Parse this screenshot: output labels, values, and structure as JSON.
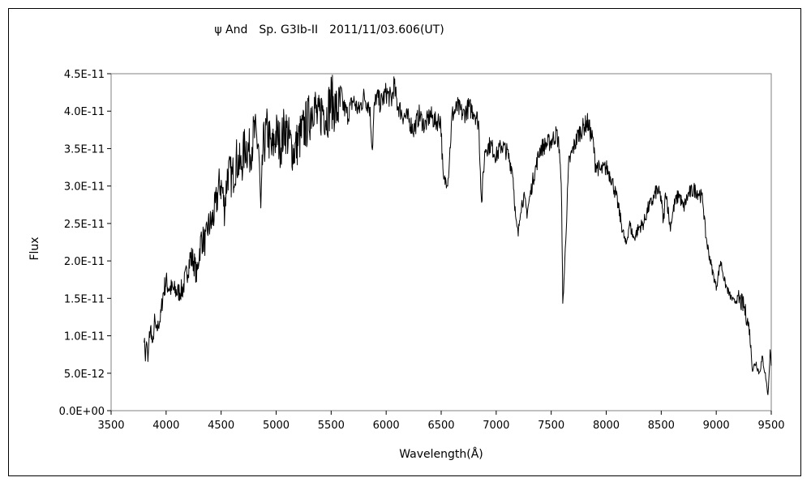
{
  "chart_data": {
    "type": "line",
    "title": "ψ And　Sp. G3Ib-II　2011/11/03.606(UT)",
    "xlabel": "Wavelength(Å)",
    "ylabel": "Flux",
    "xlim": [
      3500,
      9500
    ],
    "ylim": [
      0,
      4.5e-11
    ],
    "xticks": [
      "3500",
      "4000",
      "4500",
      "5000",
      "5500",
      "6000",
      "6500",
      "7000",
      "7500",
      "8000",
      "8500",
      "9000",
      "9500"
    ],
    "yticks": [
      "0.0E+00",
      "5.0E-12",
      "1.0E-11",
      "1.5E-11",
      "2.0E-11",
      "2.5E-11",
      "3.0E-11",
      "3.5E-11",
      "4.0E-11",
      "4.5E-11"
    ],
    "grid": false,
    "legend": "none",
    "line_color": "#000000",
    "series": [
      {
        "x": [
          3800,
          3812,
          3822,
          3835,
          3848,
          3862,
          3878,
          3895,
          3912,
          3930,
          3950,
          3972,
          3990,
          4000,
          4020,
          4050,
          4080,
          4110,
          4150,
          4190,
          4220,
          4250,
          4280,
          4300,
          4320,
          4360,
          4380,
          4410,
          4440,
          4470,
          4490,
          4510,
          4530,
          4560,
          4600,
          4640,
          4680,
          4720,
          4760,
          4800,
          4840,
          4861,
          4880,
          4920,
          4960,
          5000,
          5040,
          5080,
          5120,
          5160,
          5200,
          5250,
          5300,
          5340,
          5380,
          5420,
          5460,
          5500,
          5550,
          5600,
          5650,
          5700,
          5750,
          5800,
          5850,
          5875,
          5890,
          5910,
          5950,
          6000,
          6050,
          6070,
          6100,
          6150,
          6200,
          6250,
          6300,
          6350,
          6400,
          6450,
          6495,
          6520,
          6563,
          6600,
          6650,
          6700,
          6750,
          6800,
          6840,
          6868,
          6880,
          6900,
          6950,
          7000,
          7050,
          7100,
          7150,
          7180,
          7200,
          7220,
          7250,
          7280,
          7300,
          7330,
          7360,
          7400,
          7450,
          7500,
          7550,
          7575,
          7595,
          7605,
          7620,
          7640,
          7660,
          7700,
          7750,
          7800,
          7830,
          7860,
          7880,
          7900,
          7950,
          8000,
          8050,
          8100,
          8150,
          8180,
          8210,
          8250,
          8300,
          8340,
          8380,
          8420,
          8460,
          8498,
          8520,
          8542,
          8580,
          8620,
          8662,
          8700,
          8750,
          8800,
          8850,
          8880,
          8900,
          8920,
          8960,
          9000,
          9040,
          9080,
          9120,
          9160,
          9200,
          9250,
          9300,
          9330,
          9360,
          9390,
          9420,
          9450,
          9470,
          9490,
          9500
        ],
        "y": [
          1e-11,
          7e-12,
          9.5e-12,
          6.5e-12,
          1e-11,
          1.1e-11,
          8.5e-12,
          1.2e-11,
          1.05e-11,
          1.15e-11,
          1.25e-11,
          1.55e-11,
          1.68e-11,
          1.72e-11,
          1.66e-11,
          1.62e-11,
          1.6e-11,
          1.58e-11,
          1.62e-11,
          1.85e-11,
          2.05e-11,
          2e-11,
          1.8e-11,
          2.1e-11,
          2.3e-11,
          2.25e-11,
          2.45e-11,
          2.5e-11,
          2.65e-11,
          2.9e-11,
          3.05e-11,
          2.95e-11,
          2.7e-11,
          3.2e-11,
          3.1e-11,
          3.35e-11,
          3.25e-11,
          3.55e-11,
          3.45e-11,
          3.7e-11,
          3.55e-11,
          2.6e-11,
          3.5e-11,
          3.75e-11,
          3.45e-11,
          3.7e-11,
          3.55e-11,
          3.8e-11,
          3.6e-11,
          3.45e-11,
          3.6e-11,
          3.75e-11,
          3.9e-11,
          4.15e-11,
          3.85e-11,
          4.05e-11,
          3.95e-11,
          4.15e-11,
          4e-11,
          4.1e-11,
          3.95e-11,
          4.15e-11,
          4e-11,
          4.2e-11,
          4.05e-11,
          3.5e-11,
          4e-11,
          4.2e-11,
          4.1e-11,
          4.25e-11,
          4.15e-11,
          4.35e-11,
          4.1e-11,
          3.95e-11,
          3.9e-11,
          3.75e-11,
          3.95e-11,
          3.8e-11,
          3.95e-11,
          3.85e-11,
          3.9e-11,
          3.05e-11,
          3.1e-11,
          3.95e-11,
          4.05e-11,
          3.95e-11,
          4.05e-11,
          4e-11,
          3.85e-11,
          2.75e-11,
          3.1e-11,
          3.5e-11,
          3.55e-11,
          3.4e-11,
          3.55e-11,
          3.45e-11,
          3.2e-11,
          2.5e-11,
          2.35e-11,
          2.7e-11,
          2.85e-11,
          2.65e-11,
          2.8e-11,
          3.05e-11,
          3.25e-11,
          3.5e-11,
          3.55e-11,
          3.6e-11,
          3.7e-11,
          3.5e-11,
          2.8e-11,
          1.4e-11,
          1.85e-11,
          2.6e-11,
          3.3e-11,
          3.5e-11,
          3.7e-11,
          3.8e-11,
          3.85e-11,
          3.7e-11,
          3.6e-11,
          3.3e-11,
          3.2e-11,
          3.25e-11,
          3.1e-11,
          2.8e-11,
          2.4e-11,
          2.2e-11,
          2.5e-11,
          2.3e-11,
          2.45e-11,
          2.5e-11,
          2.7e-11,
          2.8e-11,
          2.95e-11,
          2.85e-11,
          2.5e-11,
          2.95e-11,
          2.45e-11,
          2.75e-11,
          2.9e-11,
          2.7e-11,
          2.9e-11,
          2.95e-11,
          2.9e-11,
          2.8e-11,
          2.4e-11,
          2.2e-11,
          1.9e-11,
          1.65e-11,
          2e-11,
          1.7e-11,
          1.55e-11,
          1.45e-11,
          1.5e-11,
          1.4e-11,
          1.1e-11,
          5.5e-12,
          6.5e-12,
          5e-12,
          7e-12,
          4.5e-12,
          2e-12,
          8e-12,
          6e-12
        ]
      }
    ]
  }
}
